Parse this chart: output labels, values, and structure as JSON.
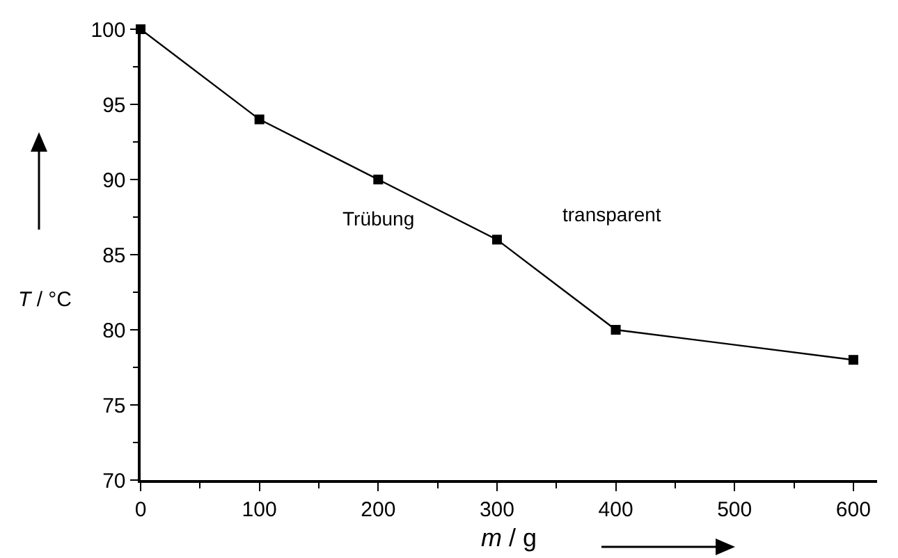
{
  "chart_data": {
    "type": "line",
    "xlabel": "m / g",
    "ylabel": "T / °C",
    "x": [
      0,
      100,
      200,
      300,
      400,
      600
    ],
    "values": [
      100,
      94,
      90,
      86,
      80,
      78
    ],
    "color": "#000000",
    "marker": "square",
    "line_style": "solid",
    "grid": false,
    "legend": false,
    "xlim": [
      0,
      620
    ],
    "xticks": [
      0,
      100,
      200,
      300,
      400,
      500,
      600
    ],
    "ylim": [
      70,
      100
    ],
    "yticks": [
      70,
      75,
      80,
      85,
      90,
      95,
      100
    ],
    "annotations": [
      "Trübung",
      "transparent"
    ]
  }
}
